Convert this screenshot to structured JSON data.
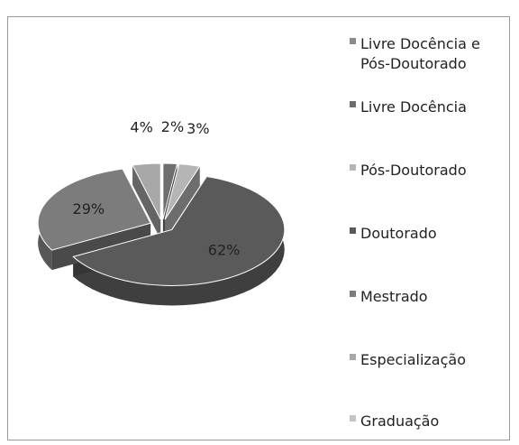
{
  "chart_data": {
    "type": "pie",
    "categories": [
      "Livre Docência e Pós-Doutorado",
      "Livre Docência",
      "Pós-Doutorado",
      "Doutorado",
      "Mestrado",
      "Especialização",
      "Graduação"
    ],
    "values": [
      0,
      2,
      3,
      62,
      29,
      4,
      0
    ],
    "value_labels": [
      null,
      "2%",
      "3%",
      "62%",
      "29%",
      "4%",
      null
    ],
    "colors": [
      "#8a8a8a",
      "#6e6e6e",
      "#b5b5b5",
      "#5a5a5a",
      "#7c7c7c",
      "#a8a8a8",
      "#c4c4c4"
    ]
  }
}
